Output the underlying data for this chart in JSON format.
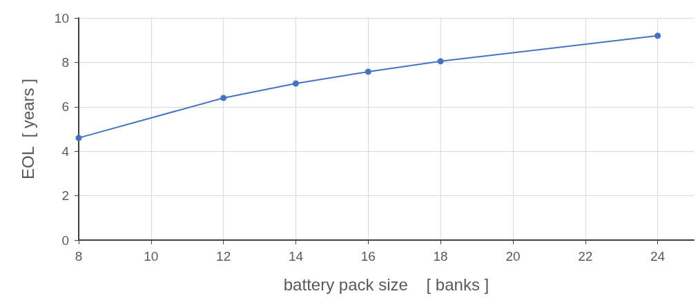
{
  "chart_data": {
    "type": "line",
    "xlabel": "battery pack size    [ banks ]",
    "ylabel": "EOL  [ years ]",
    "x": [
      8,
      12,
      14,
      16,
      18,
      24
    ],
    "series": [
      {
        "color": "#4472c4",
        "values": [
          4.6,
          6.4,
          7.05,
          7.58,
          8.05,
          9.2
        ]
      }
    ],
    "xlim": [
      8,
      25
    ],
    "xticks": [
      8,
      10,
      12,
      14,
      16,
      18,
      20,
      22,
      24
    ],
    "ylim": [
      0,
      10
    ],
    "yticks": [
      0,
      2,
      4,
      6,
      8,
      10
    ],
    "grid": true,
    "marker": "circle",
    "line_style": "solid"
  }
}
